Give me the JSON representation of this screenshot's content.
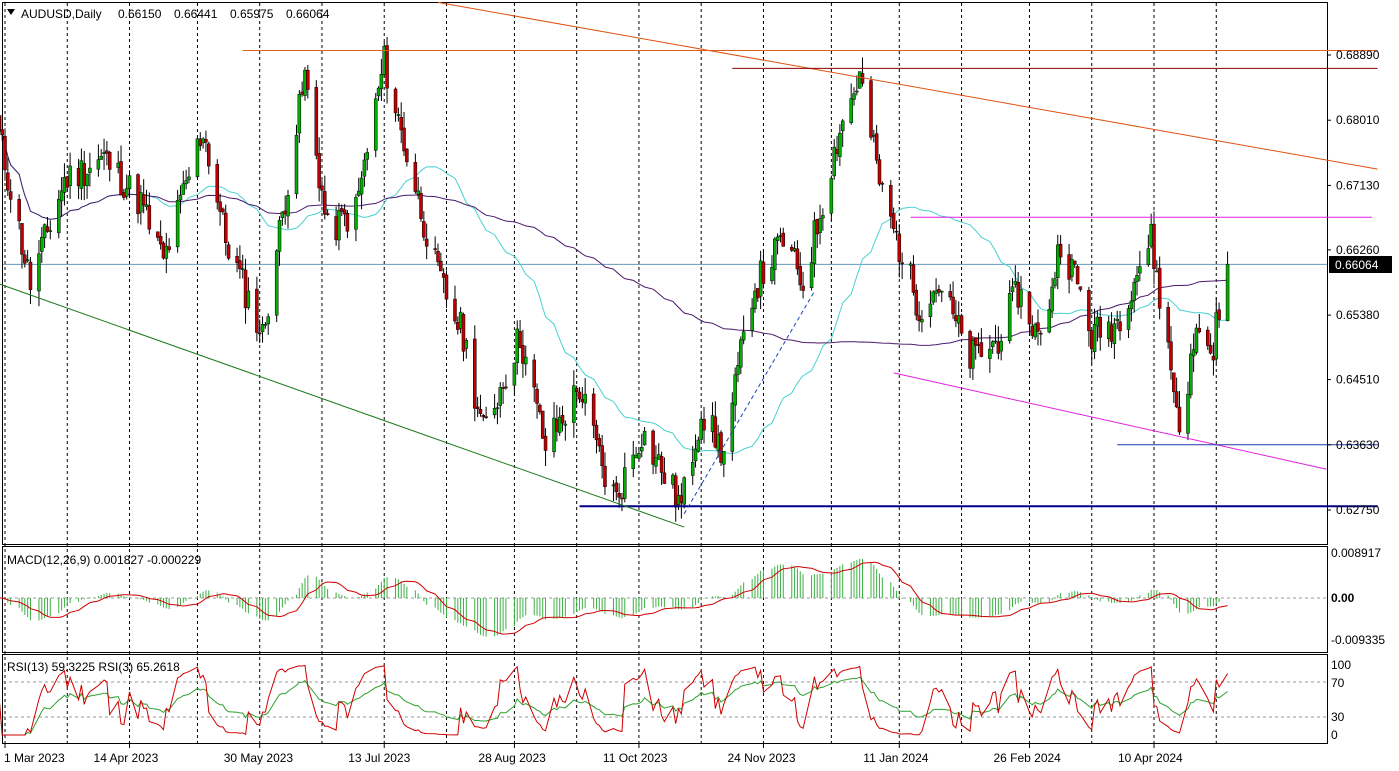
{
  "colors": {
    "background": "#ffffff",
    "candle_up": "#00b000",
    "candle_down": "#c00000",
    "wick": "#000000",
    "ma_fast": "#48d1d1",
    "ma_slow": "#4b1a6e",
    "macd_hist": "#3cb043",
    "macd_signal": "#d00000",
    "rsi13": "#d00000",
    "rsi3": "#2ea02e",
    "trend_orange": "#e0500f",
    "resistance_brown": "#8b0000",
    "resistance_orange": "#e06020",
    "channel_magenta": "#e020e0",
    "support_navy": "#00008b",
    "support_blue": "#1a3ca8",
    "trend_green": "#1a7a1a",
    "trend_dashed": "#2040c0",
    "current_price_line": "#6699bb"
  },
  "chart_data": [
    {
      "type": "candlestick",
      "title": "AUDUSD,Daily",
      "ohlc_header": {
        "open": "0.66150",
        "high": "0.66441",
        "low": "0.65975",
        "close": "0.66064"
      },
      "current_price": 0.66064,
      "current_price_label": "0.66064",
      "x_tick_labels": [
        "1 Mar 2023",
        "14 Apr 2023",
        "30 May 2023",
        "13 Jul 2023",
        "28 Aug 2023",
        "11 Oct 2023",
        "24 Nov 2023",
        "11 Jan 2024",
        "26 Feb 2024",
        "10 Apr 2024"
      ],
      "y_ticks": [
        0.6889,
        0.6801,
        0.6713,
        0.6626,
        0.6538,
        0.6451,
        0.6363,
        0.6275
      ],
      "y_tick_labels": [
        "0.68890",
        "0.68010",
        "0.67130",
        "0.66260",
        "0.65380",
        "0.64510",
        "0.63630",
        "0.62750"
      ],
      "ylim": [
        0.623,
        0.694
      ],
      "grid_vertical": "dashed",
      "anchors": [
        [
          "2023-02-27",
          0.678
        ],
        [
          "2023-03-10",
          0.658
        ],
        [
          "2023-03-22",
          0.672
        ],
        [
          "2023-04-05",
          0.675
        ],
        [
          "2023-04-18",
          0.669
        ],
        [
          "2023-04-26",
          0.661
        ],
        [
          "2023-05-10",
          0.679
        ],
        [
          "2023-05-18",
          0.664
        ],
        [
          "2023-05-31",
          0.651
        ],
        [
          "2023-06-15",
          0.686
        ],
        [
          "2023-06-23",
          0.665
        ],
        [
          "2023-07-03",
          0.668
        ],
        [
          "2023-07-13",
          0.688
        ],
        [
          "2023-07-20",
          0.677
        ],
        [
          "2023-08-01",
          0.659
        ],
        [
          "2023-08-10",
          0.651
        ],
        [
          "2023-08-17",
          0.638
        ],
        [
          "2023-08-30",
          0.651
        ],
        [
          "2023-09-08",
          0.636
        ],
        [
          "2023-09-20",
          0.644
        ],
        [
          "2023-09-29",
          0.632
        ],
        [
          "2023-10-03",
          0.629
        ],
        [
          "2023-10-12",
          0.638
        ],
        [
          "2023-10-26",
          0.628
        ],
        [
          "2023-11-02",
          0.641
        ],
        [
          "2023-11-10",
          0.635
        ],
        [
          "2023-11-20",
          0.657
        ],
        [
          "2023-12-01",
          0.664
        ],
        [
          "2023-12-08",
          0.658
        ],
        [
          "2023-12-21",
          0.679
        ],
        [
          "2023-12-28",
          0.686
        ],
        [
          "2024-01-05",
          0.67
        ],
        [
          "2024-01-18",
          0.655
        ],
        [
          "2024-01-25",
          0.658
        ],
        [
          "2024-02-05",
          0.648
        ],
        [
          "2024-02-14",
          0.65
        ],
        [
          "2024-02-22",
          0.657
        ],
        [
          "2024-03-01",
          0.65
        ],
        [
          "2024-03-08",
          0.664
        ],
        [
          "2024-03-14",
          0.658
        ],
        [
          "2024-03-19",
          0.651
        ],
        [
          "2024-03-28",
          0.653
        ],
        [
          "2024-04-03",
          0.659
        ],
        [
          "2024-04-09",
          0.664
        ],
        [
          "2024-04-19",
          0.639
        ],
        [
          "2024-04-26",
          0.653
        ],
        [
          "2024-04-30",
          0.648
        ],
        [
          "2024-05-06",
          0.6606
        ]
      ],
      "trend_lines": [
        {
          "name": "descending-resistance",
          "color": "trend_orange",
          "from": [
            "2023-08-01",
            0.696
          ],
          "to": [
            "2024-06-28",
            0.6735
          ]
        },
        {
          "name": "june-high-level",
          "color": "resistance_orange",
          "from": [
            "2023-05-24",
            0.6895
          ],
          "to": [
            "2024-06-28",
            0.6895
          ]
        },
        {
          "name": "december-high-level",
          "color": "resistance_brown",
          "from": [
            "2023-11-13",
            0.6871
          ],
          "to": [
            "2024-06-28",
            0.6871
          ]
        },
        {
          "name": "february-high-level",
          "color": "channel_magenta",
          "from": [
            "2024-01-15",
            0.667
          ],
          "to": [
            "2024-06-26",
            0.667
          ]
        },
        {
          "name": "descending-channel-low",
          "color": "channel_magenta",
          "from": [
            "2024-01-09",
            0.646
          ],
          "to": [
            "2024-06-10",
            0.633
          ]
        },
        {
          "name": "april-low-level",
          "color": "support_blue",
          "from": [
            "2024-03-28",
            0.6363
          ],
          "to": [
            "2024-06-28",
            0.6363
          ]
        },
        {
          "name": "october-low-level",
          "color": "support_navy",
          "from": [
            "2023-09-20",
            0.628
          ],
          "to": [
            "2024-06-28",
            0.628
          ]
        },
        {
          "name": "long-term-support",
          "color": "trend_green",
          "from": [
            "2023-02-27",
            0.658
          ],
          "to": [
            "2023-10-27",
            0.6252
          ]
        },
        {
          "name": "rising-dashed",
          "color": "trend_dashed",
          "dashed": true,
          "from": [
            "2023-10-27",
            0.627
          ],
          "to": [
            "2023-12-12",
            0.657
          ]
        }
      ]
    },
    {
      "type": "bar",
      "title": "MACD(12,26,9) 0.001827 -0.000229",
      "indicator": "MACD(12,26,9)",
      "macd_value": "0.001827",
      "signal_value": "-0.000229",
      "y_tick_labels": [
        "0.008917",
        "0.00",
        "-0.009335"
      ],
      "ylim": [
        -0.009335,
        0.008917
      ],
      "series": [
        {
          "name": "MACD",
          "style": "histogram",
          "color": "macd_hist"
        },
        {
          "name": "Signal",
          "style": "line",
          "color": "macd_signal"
        }
      ]
    },
    {
      "type": "line",
      "title": "RSI(13) 59.3225  RSI(3) 65.2618",
      "rsi13_value": "59.3225",
      "rsi3_value": "65.2618",
      "y_tick_labels": [
        "100",
        "70",
        "30",
        "0"
      ],
      "levels": [
        70,
        30
      ],
      "ylim": [
        0,
        100
      ],
      "series": [
        {
          "name": "RSI(13)",
          "color": "rsi3"
        },
        {
          "name": "RSI(3)",
          "color": "rsi13"
        }
      ]
    }
  ]
}
